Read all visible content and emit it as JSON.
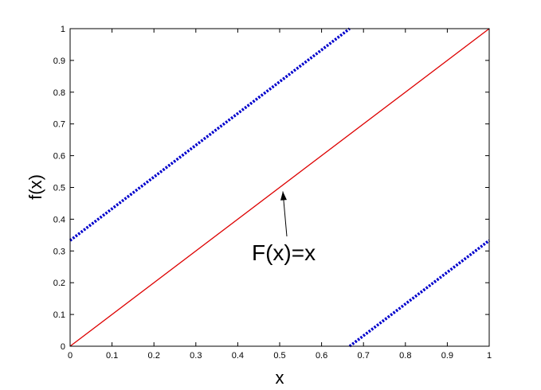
{
  "chart_data": {
    "type": "line",
    "xlabel": "x",
    "ylabel": "f(x)",
    "xlim": [
      0,
      1
    ],
    "ylim": [
      0,
      1
    ],
    "grid": false,
    "legend": null,
    "x_ticks": [
      "0",
      "0.1",
      "0.2",
      "0.3",
      "0.4",
      "0.5",
      "0.6",
      "0.7",
      "0.8",
      "0.9",
      "1"
    ],
    "y_ticks": [
      "0",
      "0.1",
      "0.2",
      "0.3",
      "0.4",
      "0.5",
      "0.6",
      "0.7",
      "0.8",
      "0.9",
      "1"
    ],
    "series": [
      {
        "style": "solid",
        "color": "#dd0000",
        "points": [
          [
            0,
            0
          ],
          [
            1,
            1
          ]
        ]
      },
      {
        "style": "dotted",
        "color": "#0000cc",
        "points": [
          [
            0,
            0.333
          ],
          [
            0.667,
            1
          ]
        ]
      },
      {
        "style": "dotted",
        "color": "#0000cc",
        "points": [
          [
            0.667,
            0
          ],
          [
            1,
            0.333
          ]
        ]
      }
    ],
    "annotations": [
      {
        "text": "F(x)=x",
        "target": [
          0.5,
          0.5
        ]
      }
    ]
  }
}
